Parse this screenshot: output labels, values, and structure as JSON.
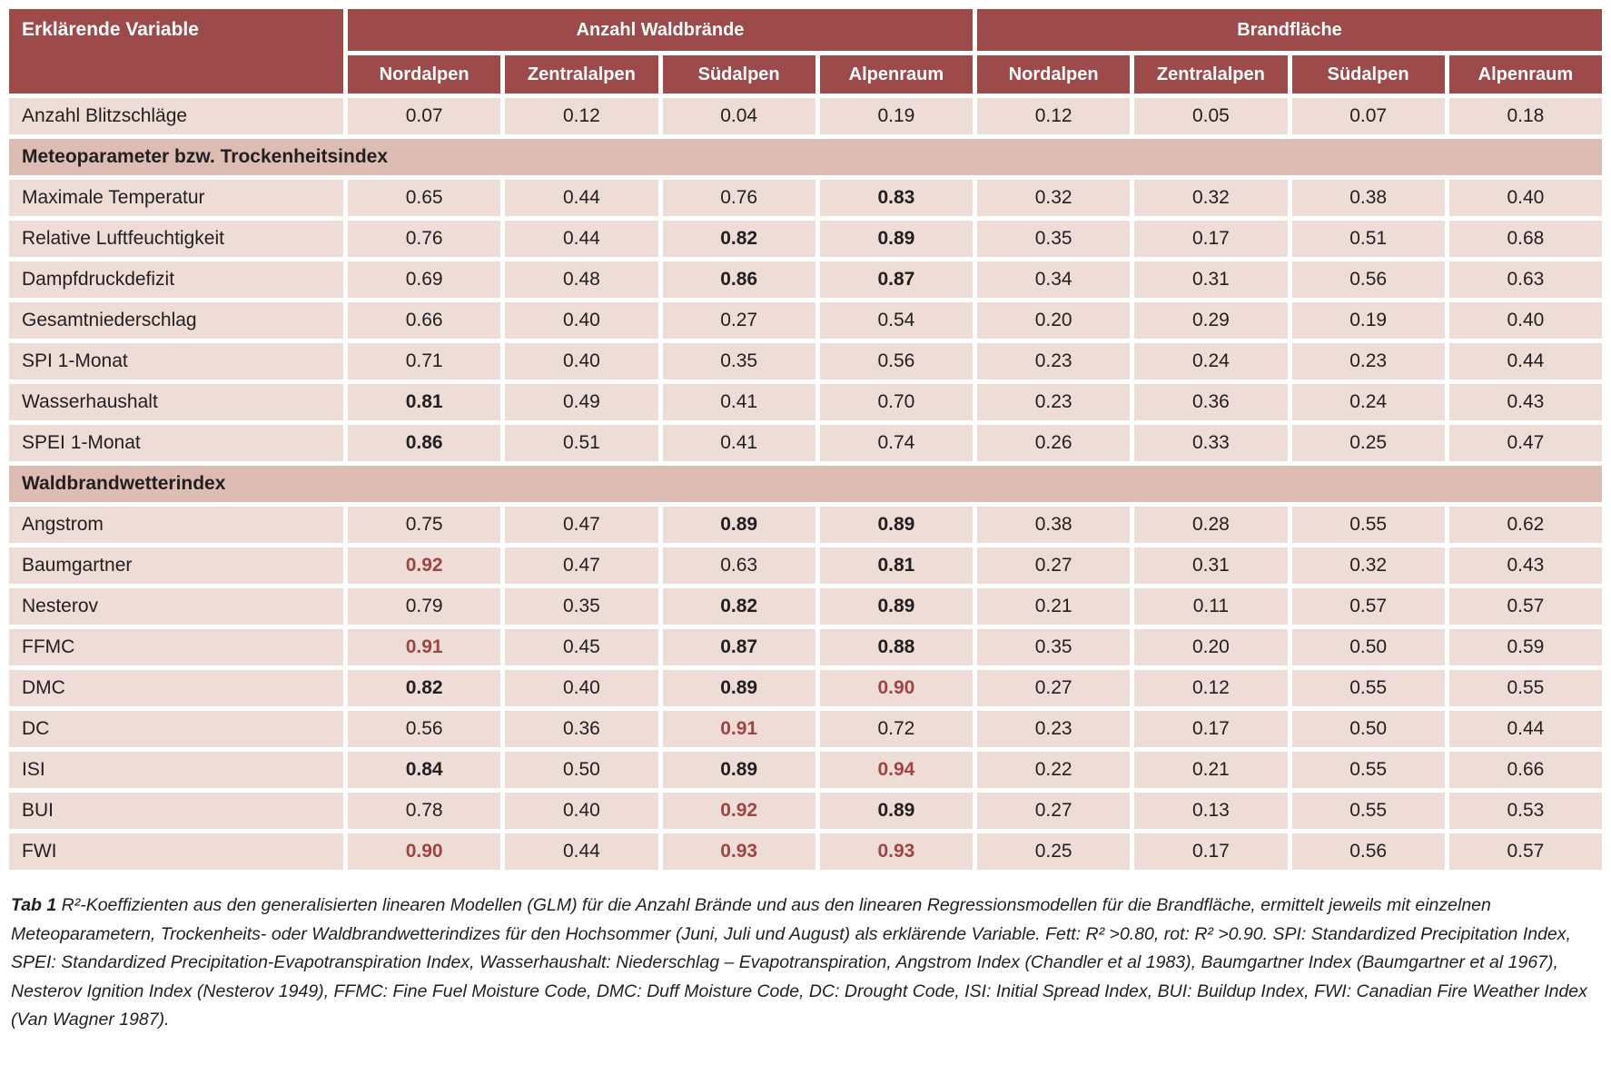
{
  "colors": {
    "header_bg": "#9c4a4a",
    "header_text": "#ffffff",
    "section_bg": "#ddbcb4",
    "row_bg": "#eedcd7",
    "text": "#231f20",
    "red_highlight": "#a04345"
  },
  "table": {
    "corner_label": "Erklärende Variable",
    "groups": [
      {
        "label": "Anzahl Waldbrände",
        "cols": [
          "Nordalpen",
          "Zentralalpen",
          "Südalpen",
          "Alpenraum"
        ]
      },
      {
        "label": "Brandfläche",
        "cols": [
          "Nordalpen",
          "Zentralalpen",
          "Südalpen",
          "Alpenraum"
        ]
      }
    ],
    "legend": {
      "bold_means": "R² >0.80",
      "red_means": "R² >0.90"
    },
    "rows": [
      {
        "type": "data",
        "label": "Anzahl Blitzschläge",
        "values": [
          "0.07",
          "0.12",
          "0.04",
          "0.19",
          "0.12",
          "0.05",
          "0.07",
          "0.18"
        ],
        "styles": [
          "",
          "",
          "",
          "",
          "",
          "",
          "",
          ""
        ]
      },
      {
        "type": "section",
        "label": "Meteoparameter bzw. Trockenheitsindex"
      },
      {
        "type": "data",
        "label": "Maximale Temperatur",
        "values": [
          "0.65",
          "0.44",
          "0.76",
          "0.83",
          "0.32",
          "0.32",
          "0.38",
          "0.40"
        ],
        "styles": [
          "",
          "",
          "",
          "b",
          "",
          "",
          "",
          ""
        ]
      },
      {
        "type": "data",
        "label": "Relative Luftfeuchtigkeit",
        "values": [
          "0.76",
          "0.44",
          "0.82",
          "0.89",
          "0.35",
          "0.17",
          "0.51",
          "0.68"
        ],
        "styles": [
          "",
          "",
          "b",
          "b",
          "",
          "",
          "",
          ""
        ]
      },
      {
        "type": "data",
        "label": "Dampfdruckdefizit",
        "values": [
          "0.69",
          "0.48",
          "0.86",
          "0.87",
          "0.34",
          "0.31",
          "0.56",
          "0.63"
        ],
        "styles": [
          "",
          "",
          "b",
          "b",
          "",
          "",
          "",
          ""
        ]
      },
      {
        "type": "data",
        "label": "Gesamtniederschlag",
        "values": [
          "0.66",
          "0.40",
          "0.27",
          "0.54",
          "0.20",
          "0.29",
          "0.19",
          "0.40"
        ],
        "styles": [
          "",
          "",
          "",
          "",
          "",
          "",
          "",
          ""
        ]
      },
      {
        "type": "data",
        "label": "SPI 1-Monat",
        "values": [
          "0.71",
          "0.40",
          "0.35",
          "0.56",
          "0.23",
          "0.24",
          "0.23",
          "0.44"
        ],
        "styles": [
          "",
          "",
          "",
          "",
          "",
          "",
          "",
          ""
        ]
      },
      {
        "type": "data",
        "label": "Wasserhaushalt",
        "values": [
          "0.81",
          "0.49",
          "0.41",
          "0.70",
          "0.23",
          "0.36",
          "0.24",
          "0.43"
        ],
        "styles": [
          "b",
          "",
          "",
          "",
          "",
          "",
          "",
          ""
        ]
      },
      {
        "type": "data",
        "label": "SPEI 1-Monat",
        "values": [
          "0.86",
          "0.51",
          "0.41",
          "0.74",
          "0.26",
          "0.33",
          "0.25",
          "0.47"
        ],
        "styles": [
          "b",
          "",
          "",
          "",
          "",
          "",
          "",
          ""
        ]
      },
      {
        "type": "section",
        "label": "Waldbrandwetterindex"
      },
      {
        "type": "data",
        "label": "Angstrom",
        "values": [
          "0.75",
          "0.47",
          "0.89",
          "0.89",
          "0.38",
          "0.28",
          "0.55",
          "0.62"
        ],
        "styles": [
          "",
          "",
          "b",
          "b",
          "",
          "",
          "",
          ""
        ]
      },
      {
        "type": "data",
        "label": "Baumgartner",
        "values": [
          "0.92",
          "0.47",
          "0.63",
          "0.81",
          "0.27",
          "0.31",
          "0.32",
          "0.43"
        ],
        "styles": [
          "r",
          "",
          "",
          "b",
          "",
          "",
          "",
          ""
        ]
      },
      {
        "type": "data",
        "label": "Nesterov",
        "values": [
          "0.79",
          "0.35",
          "0.82",
          "0.89",
          "0.21",
          "0.11",
          "0.57",
          "0.57"
        ],
        "styles": [
          "",
          "",
          "b",
          "b",
          "",
          "",
          "",
          ""
        ]
      },
      {
        "type": "data",
        "label": "FFMC",
        "values": [
          "0.91",
          "0.45",
          "0.87",
          "0.88",
          "0.35",
          "0.20",
          "0.50",
          "0.59"
        ],
        "styles": [
          "r",
          "",
          "b",
          "b",
          "",
          "",
          "",
          ""
        ]
      },
      {
        "type": "data",
        "label": "DMC",
        "values": [
          "0.82",
          "0.40",
          "0.89",
          "0.90",
          "0.27",
          "0.12",
          "0.55",
          "0.55"
        ],
        "styles": [
          "b",
          "",
          "b",
          "r",
          "",
          "",
          "",
          ""
        ]
      },
      {
        "type": "data",
        "label": "DC",
        "values": [
          "0.56",
          "0.36",
          "0.91",
          "0.72",
          "0.23",
          "0.17",
          "0.50",
          "0.44"
        ],
        "styles": [
          "",
          "",
          "r",
          "",
          "",
          "",
          "",
          ""
        ]
      },
      {
        "type": "data",
        "label": "ISI",
        "values": [
          "0.84",
          "0.50",
          "0.89",
          "0.94",
          "0.22",
          "0.21",
          "0.55",
          "0.66"
        ],
        "styles": [
          "b",
          "",
          "b",
          "r",
          "",
          "",
          "",
          ""
        ]
      },
      {
        "type": "data",
        "label": "BUI",
        "values": [
          "0.78",
          "0.40",
          "0.92",
          "0.89",
          "0.27",
          "0.13",
          "0.55",
          "0.53"
        ],
        "styles": [
          "",
          "",
          "r",
          "b",
          "",
          "",
          "",
          ""
        ]
      },
      {
        "type": "data",
        "label": "FWI",
        "values": [
          "0.90",
          "0.44",
          "0.93",
          "0.93",
          "0.25",
          "0.17",
          "0.56",
          "0.57"
        ],
        "styles": [
          "r",
          "",
          "r",
          "r",
          "",
          "",
          "",
          ""
        ]
      }
    ]
  },
  "caption": {
    "tag": "Tab 1",
    "text": " R²-Koeffizienten aus den generalisierten linearen Modellen (GLM) für die Anzahl Brände und aus den linearen Regressionsmodellen für die Brandfläche, ermittelt jeweils mit einzelnen Meteoparametern, Trockenheits- oder Waldbrandwetterindizes für den Hochsommer (Juni, Juli und August) als erklärende Variable. Fett: R² >0.80, rot: R² >0.90. SPI: Standardized Precipitation Index, SPEI: Standardized Precipitation-Evapotranspiration Index, Wasserhaushalt: Niederschlag – Evapotranspiration, Angstrom Index (Chandler et al 1983), Baumgartner Index (Baumgartner et al 1967), Nesterov Ignition Index (Nesterov 1949), FFMC: Fine Fuel Moisture Code, DMC: Duff Moisture Code, DC: Drought Code, ISI: Initial Spread Index, BUI: Buildup Index, FWI: Canadian Fire Weather Index (Van Wagner 1987)."
  }
}
